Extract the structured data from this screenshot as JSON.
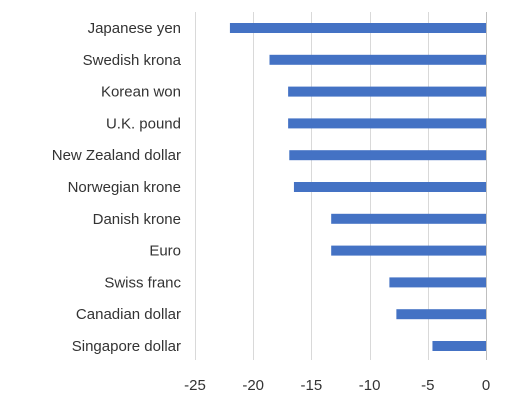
{
  "chart_data": {
    "type": "bar",
    "orientation": "horizontal",
    "title": "",
    "xlabel": "",
    "ylabel": "",
    "categories": [
      "Japanese yen",
      "Swedish krona",
      "Korean won",
      "U.K. pound",
      "New Zealand dollar",
      "Norwegian krone",
      "Danish krone",
      "Euro",
      "Swiss franc",
      "Canadian dollar",
      "Singapore dollar"
    ],
    "values": [
      -22.0,
      -18.6,
      -17.0,
      -17.0,
      -16.9,
      -16.5,
      -13.3,
      -13.3,
      -8.3,
      -7.7,
      -4.6
    ],
    "xlim": [
      -25,
      0
    ],
    "xticks": [
      -25,
      -20,
      -15,
      -10,
      -5,
      0
    ],
    "xtick_labels": [
      "-25",
      "-20",
      "-15",
      "-10",
      "-5",
      "0"
    ],
    "grid": "vertical",
    "legend": "none",
    "bar_color": "#4472c4"
  }
}
